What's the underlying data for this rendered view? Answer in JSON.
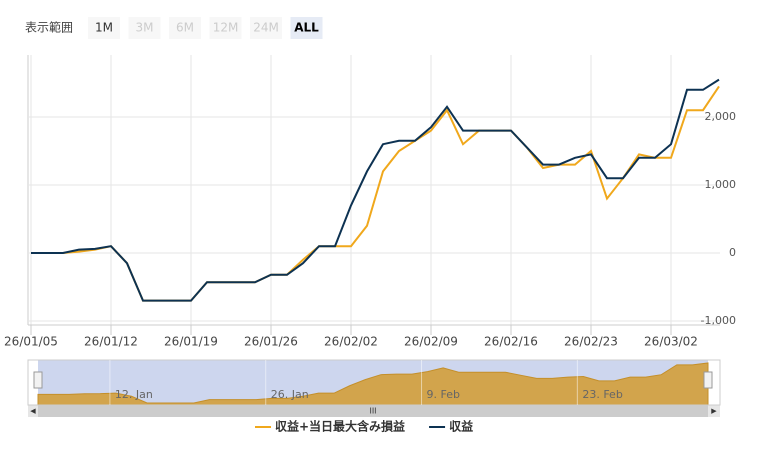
{
  "range_selector": {
    "label": "表示範囲",
    "buttons": [
      "1M",
      "3M",
      "6M",
      "12M",
      "24M",
      "ALL"
    ],
    "selected": 5
  },
  "chart_data": {
    "type": "line",
    "categories": [
      "26/01/05",
      null,
      null,
      null,
      null,
      "26/01/12",
      null,
      null,
      null,
      null,
      "26/01/19",
      null,
      null,
      null,
      null,
      "26/01/26",
      null,
      null,
      null,
      null,
      "26/02/02",
      null,
      null,
      null,
      null,
      "26/02/09",
      null,
      null,
      null,
      null,
      "26/02/16",
      null,
      null,
      null,
      null,
      "26/02/23",
      null,
      null,
      null,
      null,
      "26/03/02",
      null,
      null,
      null
    ],
    "series": [
      {
        "name": "収益+当日最大含み損益",
        "color": "#f0a81c",
        "values": [
          0,
          0,
          0,
          20,
          50,
          100,
          -150,
          -700,
          -700,
          -700,
          -700,
          -430,
          -430,
          -430,
          -430,
          -320,
          -320,
          -100,
          100,
          100,
          100,
          400,
          1200,
          1500,
          1650,
          1800,
          2100,
          1600,
          1800,
          1800,
          1800,
          1550,
          1250,
          1300,
          1300,
          1500,
          800,
          1100,
          1450,
          1400,
          1400,
          2100,
          2100,
          2450
        ]
      },
      {
        "name": "収益",
        "color": "#0d3252",
        "values": [
          0,
          0,
          0,
          50,
          60,
          100,
          -150,
          -700,
          -700,
          -700,
          -700,
          -430,
          -430,
          -430,
          -430,
          -320,
          -320,
          -150,
          100,
          100,
          700,
          1200,
          1600,
          1650,
          1650,
          1850,
          2150,
          1800,
          1800,
          1800,
          1800,
          1550,
          1300,
          1300,
          1400,
          1450,
          1100,
          1100,
          1400,
          1400,
          1600,
          2400,
          2400,
          2550
        ]
      }
    ],
    "ylim": [
      -1000,
      3000
    ],
    "yticks": [
      {
        "value": -1000,
        "label": "-1,000"
      },
      0,
      {
        "value": 1000,
        "label": "1,000"
      },
      {
        "value": 2000,
        "label": "2,000"
      }
    ],
    "grid": true,
    "navigator_labels": [
      "12. Jan",
      "26. Jan",
      "9. Feb",
      "23. Feb"
    ]
  }
}
